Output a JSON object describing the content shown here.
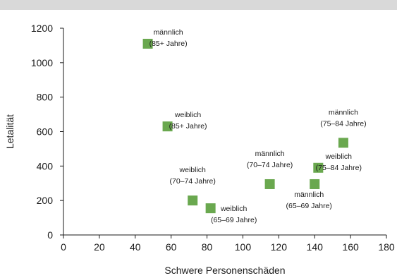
{
  "chart_data": {
    "type": "scatter",
    "title": "",
    "xlabel": "Schwere Personenschäden",
    "ylabel": "Letalität",
    "xlim": [
      0,
      180
    ],
    "ylim": [
      0,
      1200
    ],
    "xticks": [
      0,
      20,
      40,
      60,
      80,
      100,
      120,
      140,
      160,
      180
    ],
    "yticks": [
      0,
      200,
      400,
      600,
      800,
      1000,
      1200
    ],
    "grid": false,
    "marker_color": "#6aa84f",
    "points": [
      {
        "x": 47,
        "y": 1110,
        "label": [
          "männlich",
          "(85+ Jahre)"
        ],
        "label_pos": "right"
      },
      {
        "x": 58,
        "y": 630,
        "label": [
          "weiblich",
          "(85+ Jahre)"
        ],
        "label_pos": "right"
      },
      {
        "x": 72,
        "y": 200,
        "label": [
          "weiblich",
          "(70–74 Jahre)"
        ],
        "label_pos": "above"
      },
      {
        "x": 82,
        "y": 155,
        "label": [
          "weiblich",
          "(65–69 Jahre)"
        ],
        "label_pos": "below-right"
      },
      {
        "x": 115,
        "y": 295,
        "label": [
          "männlich",
          "(70–74 Jahre)"
        ],
        "label_pos": "above"
      },
      {
        "x": 140,
        "y": 295,
        "label": [
          "männlich",
          "(65–69 Jahre)"
        ],
        "label_pos": "below"
      },
      {
        "x": 142,
        "y": 390,
        "label": [
          "weiblich",
          "(75–84 Jahre)"
        ],
        "label_pos": "right"
      },
      {
        "x": 156,
        "y": 535,
        "label": [
          "männlich",
          "(75–84 Jahre)"
        ],
        "label_pos": "above"
      }
    ]
  }
}
